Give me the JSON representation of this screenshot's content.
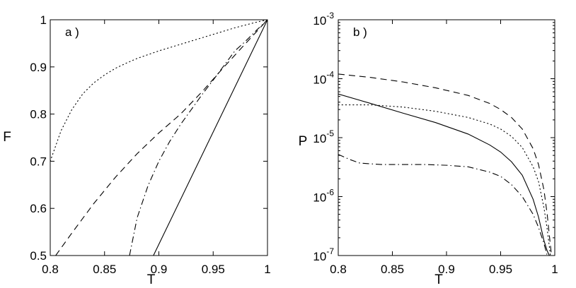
{
  "chart_data": [
    {
      "type": "line",
      "panel_label": "a )",
      "xlabel": "T",
      "ylabel": "F",
      "xlim": [
        0.8,
        1.0
      ],
      "ylim": [
        0.5,
        1.0
      ],
      "xticks": [
        "0.8",
        "0.85",
        "0.9",
        "0.95",
        "1"
      ],
      "yticks": [
        "0.5",
        "0.6",
        "0.7",
        "0.8",
        "0.9",
        "1"
      ],
      "grid": false,
      "series": [
        {
          "style": "dotted",
          "x": [
            0.8,
            0.81,
            0.82,
            0.83,
            0.84,
            0.85,
            0.86,
            0.87,
            0.88,
            0.89,
            0.9,
            0.91,
            0.92,
            0.93,
            0.94,
            0.95,
            0.96,
            0.97,
            0.98,
            0.99,
            1.0
          ],
          "values": [
            0.7,
            0.765,
            0.81,
            0.843,
            0.866,
            0.883,
            0.897,
            0.908,
            0.918,
            0.926,
            0.934,
            0.941,
            0.948,
            0.955,
            0.962,
            0.969,
            0.976,
            0.983,
            0.989,
            0.995,
            1.0
          ]
        },
        {
          "style": "dashed",
          "x": [
            0.805,
            0.82,
            0.84,
            0.86,
            0.88,
            0.9,
            0.92,
            0.94,
            0.96,
            0.98,
            1.0
          ],
          "values": [
            0.5,
            0.548,
            0.61,
            0.666,
            0.716,
            0.76,
            0.8,
            0.848,
            0.9,
            0.95,
            1.0
          ]
        },
        {
          "style": "dashdot",
          "x": [
            0.873,
            0.88,
            0.89,
            0.9,
            0.91,
            0.92,
            0.93,
            0.94,
            0.95,
            0.96,
            0.97,
            0.98,
            0.99,
            1.0
          ],
          "values": [
            0.5,
            0.58,
            0.648,
            0.7,
            0.742,
            0.778,
            0.81,
            0.842,
            0.872,
            0.903,
            0.934,
            0.955,
            0.978,
            1.0
          ]
        },
        {
          "style": "solid",
          "x": [
            0.895,
            1.0
          ],
          "values": [
            0.5,
            1.0
          ]
        }
      ]
    },
    {
      "type": "line",
      "panel_label": "b )",
      "xlabel": "T",
      "ylabel": "P",
      "yscale": "log",
      "xlim": [
        0.8,
        1.0
      ],
      "ylim": [
        1e-07,
        0.001
      ],
      "xticks": [
        "0.8",
        "0.85",
        "0.9",
        "0.95",
        "1"
      ],
      "yticks": [
        {
          "base": "10",
          "exp": "-7"
        },
        {
          "base": "10",
          "exp": "-6"
        },
        {
          "base": "10",
          "exp": "-5"
        },
        {
          "base": "10",
          "exp": "-4"
        },
        {
          "base": "10",
          "exp": "-3"
        }
      ],
      "grid": false,
      "series": [
        {
          "style": "dashed",
          "x": [
            0.8,
            0.83,
            0.86,
            0.89,
            0.92,
            0.94,
            0.95,
            0.96,
            0.97,
            0.98,
            0.985,
            0.99,
            0.993,
            0.995,
            0.997
          ],
          "values": [
            0.00012,
            0.000105,
            8.8e-05,
            7e-05,
            5.2e-05,
            3.8e-05,
            3e-05,
            2.2e-05,
            1.4e-05,
            6.5e-06,
            3.5e-06,
            1.3e-06,
            5e-07,
            2.2e-07,
            1e-07
          ]
        },
        {
          "style": "solid",
          "x": [
            0.8,
            0.83,
            0.86,
            0.89,
            0.92,
            0.94,
            0.95,
            0.96,
            0.97,
            0.98,
            0.985,
            0.99,
            0.993,
            0.995
          ],
          "values": [
            5.5e-05,
            3.8e-05,
            2.6e-05,
            1.8e-05,
            1.15e-05,
            7.5e-06,
            5.7e-06,
            3.9e-06,
            2.3e-06,
            9e-07,
            4.5e-07,
            1.8e-07,
            1.2e-07,
            1e-07
          ]
        },
        {
          "style": "dotted",
          "x": [
            0.8,
            0.83,
            0.86,
            0.89,
            0.92,
            0.94,
            0.95,
            0.96,
            0.97,
            0.98,
            0.985,
            0.99,
            0.993,
            0.996
          ],
          "values": [
            3.6e-05,
            3.6e-05,
            3.3e-05,
            2.8e-05,
            2.2e-05,
            1.7e-05,
            1.4e-05,
            1.05e-05,
            6.8e-06,
            3.2e-06,
            1.8e-06,
            6.5e-07,
            2.8e-07,
            1e-07
          ]
        },
        {
          "style": "dashdot",
          "x": [
            0.8,
            0.81,
            0.82,
            0.84,
            0.86,
            0.88,
            0.9,
            0.92,
            0.94,
            0.95,
            0.96,
            0.97,
            0.98,
            0.985,
            0.99,
            0.993
          ],
          "values": [
            5.2e-06,
            4.3e-06,
            3.7e-06,
            3.5e-06,
            3.5e-06,
            3.5e-06,
            3.4e-06,
            3.2e-06,
            2.6e-06,
            2.2e-06,
            1.6e-06,
            1e-06,
            5e-07,
            3e-07,
            1.6e-07,
            1e-07
          ]
        }
      ]
    }
  ]
}
